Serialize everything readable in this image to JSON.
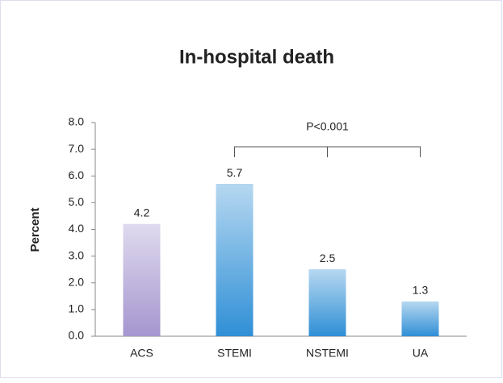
{
  "chart_data": {
    "type": "bar",
    "title": "In-hospital death",
    "y_label": "Percent",
    "categories": [
      "ACS",
      "STEMI",
      "NSTEMI",
      "UA"
    ],
    "values": [
      4.2,
      5.7,
      2.5,
      1.3
    ],
    "colors": [
      "#a596cf",
      "#2f8fd6",
      "#2f8fd6",
      "#2f8fd6"
    ],
    "ylim": [
      0,
      8
    ],
    "yticks": [
      {
        "value": 0,
        "label": "0.0"
      },
      {
        "value": 1,
        "label": "1.0"
      },
      {
        "value": 2,
        "label": "2.0"
      },
      {
        "value": 3,
        "label": "3.0"
      },
      {
        "value": 4,
        "label": "4.0"
      },
      {
        "value": 5,
        "label": "5.0"
      },
      {
        "value": 6,
        "label": "6.0"
      },
      {
        "value": 7,
        "label": "7.0"
      },
      {
        "value": 8,
        "label": "8.0"
      }
    ],
    "annotation": "P<0.001",
    "grid": false
  }
}
